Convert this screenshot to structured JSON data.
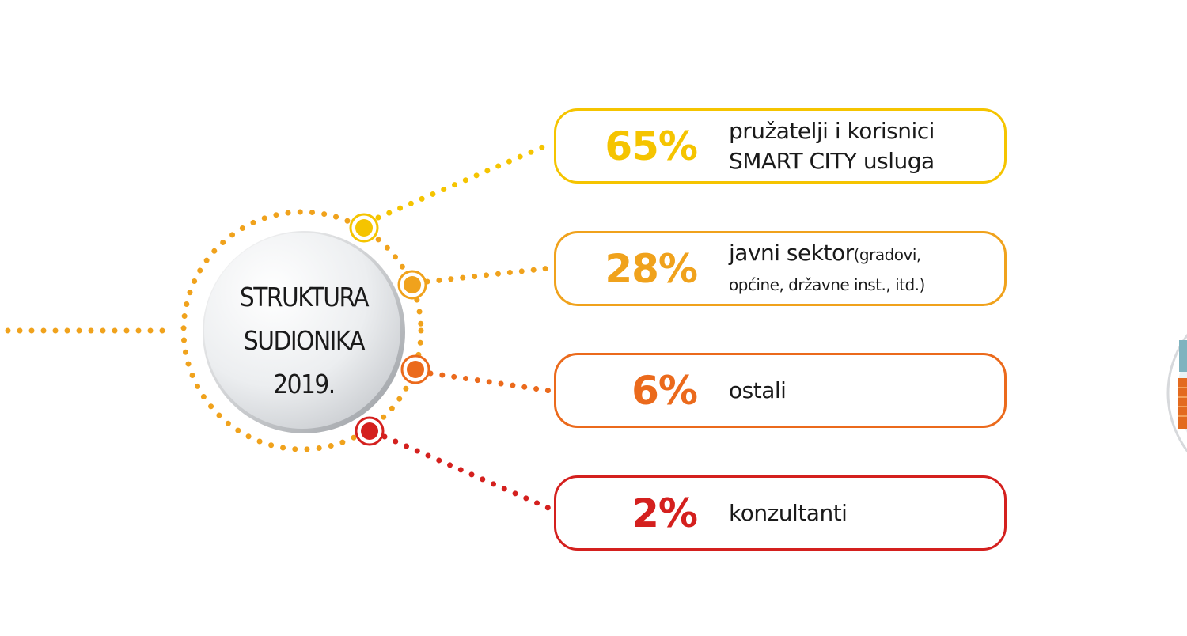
{
  "center": {
    "line1": "STRUKTURA",
    "line2": "SUDIONIKA",
    "line3": "2019."
  },
  "segments": [
    {
      "percent": "65%",
      "label1": "pružatelji i korisnici",
      "label2": "SMART CITY usluga",
      "color": "#f5c400"
    },
    {
      "percent": "28%",
      "label1": "javni sektor",
      "label1_small": "(gradovi,",
      "label2": "općine, državne inst., itd.)",
      "color": "#f0a21c"
    },
    {
      "percent": "6%",
      "label1": "ostali",
      "color": "#eb6a1c"
    },
    {
      "percent": "2%",
      "label1": "konzultanti",
      "color": "#d4201e"
    }
  ],
  "colors": {
    "ring": "#f0a21c",
    "lead": "#f0a21c"
  }
}
